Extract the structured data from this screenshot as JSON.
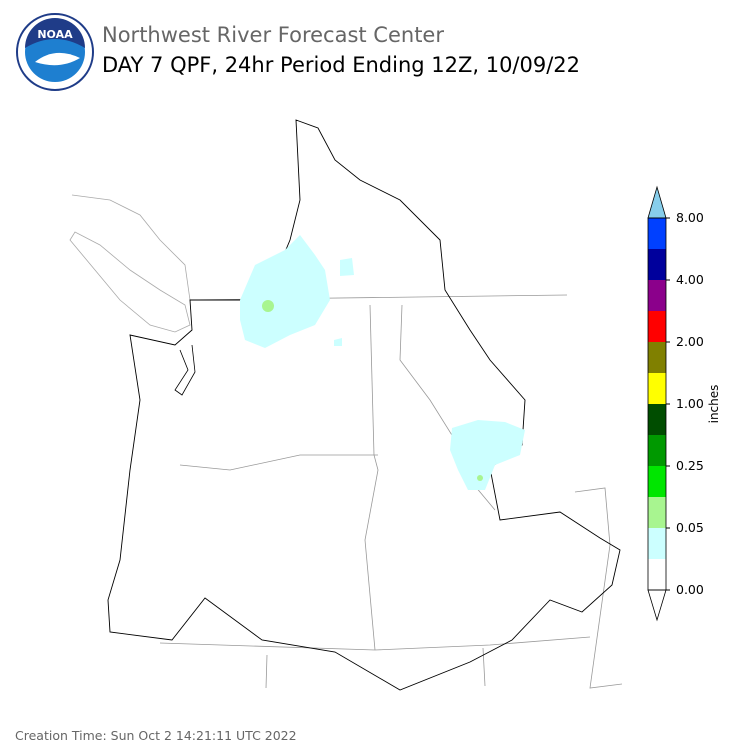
{
  "logo": {
    "text": "NOAA"
  },
  "header": {
    "title": "Northwest River Forecast Center",
    "subtitle": "DAY 7 QPF, 24hr Period Ending 12Z, 10/09/22"
  },
  "colorbar": {
    "label": "inches",
    "ticks": [
      {
        "value": 0,
        "label": "0.00"
      },
      {
        "value": 0.05,
        "label": "0.05"
      },
      {
        "value": 0.25,
        "label": "0.25"
      },
      {
        "value": 1,
        "label": "1.00"
      },
      {
        "value": 2,
        "label": "2.00"
      },
      {
        "value": 4,
        "label": "4.00"
      },
      {
        "value": 8,
        "label": "8.00"
      }
    ],
    "colors": [
      "#ffffff",
      "#ccffff",
      "#a8f590",
      "#00e600",
      "#009900",
      "#004d00",
      "#ffff00",
      "#808000",
      "#ff0000",
      "#8b008b",
      "#00009c",
      "#0040ff"
    ],
    "extend_colors": [
      "#ffffff",
      "#87ceeb"
    ]
  },
  "footer": {
    "creation_time": "Creation Time: Sun Oct 2 14:21:11 UTC 2022"
  }
}
